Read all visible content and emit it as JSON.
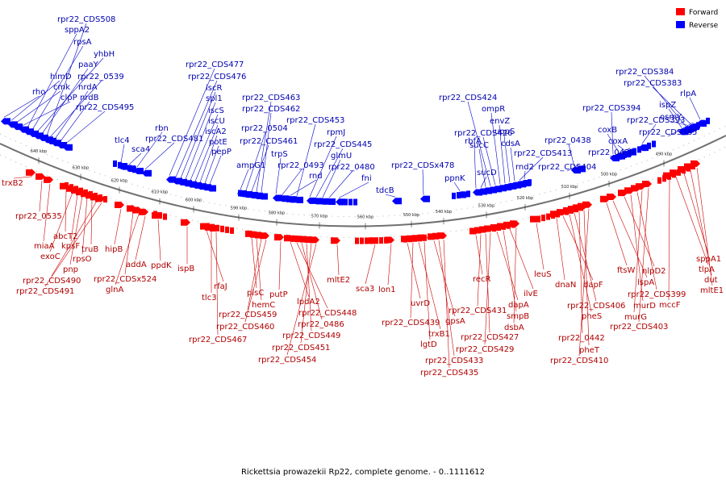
{
  "caption": "Rickettsia prowazekii Rp22, complete genome. - 0..1111612",
  "legend": [
    {
      "label": "Forward",
      "color": "#ff0000"
    },
    {
      "label": "Reverse",
      "color": "#0000ff"
    }
  ],
  "ticks": [
    "640 kbp",
    "630 kbp",
    "620 kbp",
    "610 kbp",
    "600 kbp",
    "590 kbp",
    "580 kbp",
    "570 kbp",
    "560 kbp",
    "550 kbp",
    "540 kbp",
    "530 kbp",
    "520 kbp",
    "510 kbp",
    "500 kbp",
    "490 kbp"
  ],
  "reverse_genes": [
    "rho",
    "himD",
    "cmk",
    "clpP",
    "sppA2",
    "rpsA",
    "yhbH",
    "paaY",
    "rpr22_CDS508",
    "rpr22_0539",
    "nrdA",
    "nrdB",
    "rpr22_CDS495",
    "tlc4",
    "sca4",
    "rbn",
    "rpr22_CDS481",
    "rpr22_CDS477",
    "rpr22_CDS476",
    "iscR",
    "spl1",
    "iscS",
    "iscU",
    "iscA2",
    "potE",
    "pepP",
    "ampG1",
    "rpr22_0504",
    "rpr22_CDS461",
    "rpr22_CDS463",
    "rpr22_CDS462",
    "trpS",
    "rpr22_0493",
    "rnd",
    "rpr22_CDS453",
    "rpmJ",
    "rpr22_CDS445",
    "glmU",
    "rpr22_0480",
    "fni",
    "tdcB",
    "rpr22_CDSx478",
    "ppnK",
    "rbfA",
    "sucD",
    "sucC",
    "rpr22_CDS424",
    "rpr22_CDS426",
    "ompR",
    "envZ",
    "uppS",
    "cdsA",
    "rpr22_CDS413",
    "rnd2",
    "rpr22_0438",
    "rpr22_CDS404",
    "rpr22_CDS394",
    "coxB",
    "coxA",
    "rpr22_0430",
    "rpr22_CDS393",
    "rpr22_CDS384",
    "rpr22_CDS383",
    "ispZ",
    "osmY",
    "rpr22_CDS385",
    "rlpA"
  ],
  "forward_genes": [
    "trxB2",
    "rpr22_0535",
    "miaA",
    "abcT2",
    "exoC",
    "kpsF",
    "pnp",
    "rpsO",
    "truB",
    "rpr22_CDS490",
    "rpr22_CDS491",
    "hipB",
    "rpr22_CDSx524",
    "glnA",
    "addA",
    "ppdK",
    "ispB",
    "rfaJ",
    "tlc3",
    "rpr22_CDS467",
    "plsC",
    "hemC",
    "rpr22_CDS459",
    "rpr22_CDS460",
    "putP",
    "lpdA2",
    "rpr22_CDS448",
    "rpr22_0486",
    "rpr22_CDS449",
    "rpr22_CDS451",
    "rpr22_CDS454",
    "mltE2",
    "sca3",
    "lon1",
    "uvrD",
    "rpr22_CDS439",
    "trxB1",
    "lgtD",
    "gpsA",
    "rpr22_CDS433",
    "rpr22_CDS435",
    "recR",
    "rpr22_CDS431",
    "rpr22_CDS427",
    "rpr22_CDS429",
    "dapA",
    "smpB",
    "ilvE",
    "dsbA",
    "leuS",
    "dnaN",
    "dapF",
    "pheS",
    "rpr22_CDS406",
    "rpr22_0442",
    "pheT",
    "rpr22_CDS410",
    "ftsW",
    "lspA",
    "nlpD2",
    "murD",
    "rpr22_CDS399",
    "murG",
    "rpr22_CDS403",
    "mccF",
    "tlpA",
    "sppA1",
    "dut",
    "mltE1"
  ]
}
